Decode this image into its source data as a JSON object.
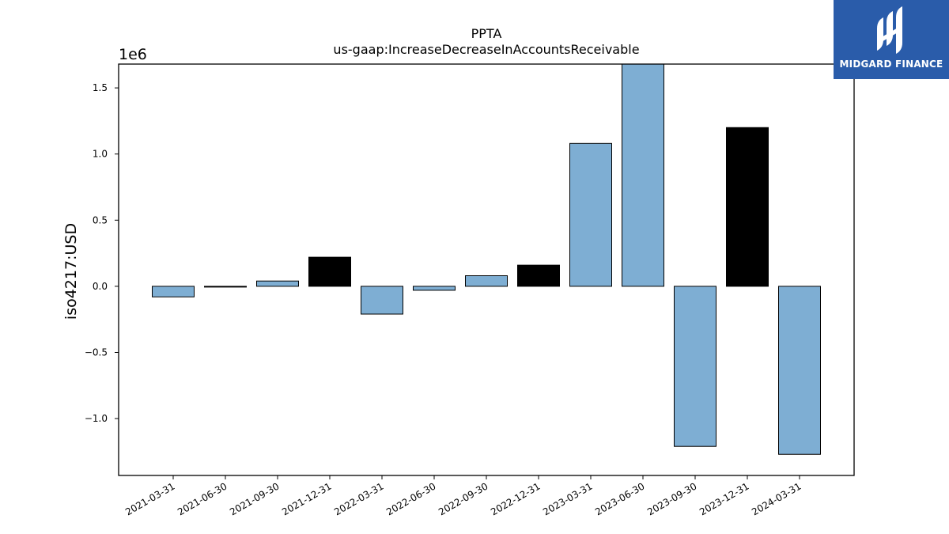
{
  "chart_data": {
    "type": "bar",
    "title": "PPTA",
    "subtitle": "us-gaap:IncreaseDecreaseInAccountsReceivable",
    "ylabel": "iso4217:USD",
    "xlabel": "",
    "offset_label": "1e6",
    "scale": 1000000,
    "ylim": [
      -1.43,
      1.68
    ],
    "yticks": [
      -1.0,
      -0.5,
      0.0,
      0.5,
      1.0,
      1.5
    ],
    "ytick_labels": [
      "−1.0",
      "−0.5",
      "0.0",
      "0.5",
      "1.0",
      "1.5"
    ],
    "categories": [
      "2021-03-31",
      "2021-06-30",
      "2021-09-30",
      "2021-12-31",
      "2022-03-31",
      "2022-06-30",
      "2022-09-30",
      "2022-12-31",
      "2023-03-31",
      "2023-06-30",
      "2023-09-30",
      "2023-12-31",
      "2024-03-31"
    ],
    "values": [
      -0.08,
      -0.005,
      0.04,
      0.22,
      -0.21,
      -0.03,
      0.08,
      0.16,
      1.08,
      1.69,
      -1.21,
      1.2,
      -1.27
    ],
    "bar_colors": [
      "#7eaed3",
      "#000000",
      "#7eaed3",
      "#000000",
      "#7eaed3",
      "#7eaed3",
      "#7eaed3",
      "#000000",
      "#7eaed3",
      "#7eaed3",
      "#7eaed3",
      "#000000",
      "#7eaed3"
    ],
    "grid": false,
    "legend": "none"
  },
  "logo": {
    "text": "MIDGARD FINANCE",
    "background": "#2a5caa"
  }
}
